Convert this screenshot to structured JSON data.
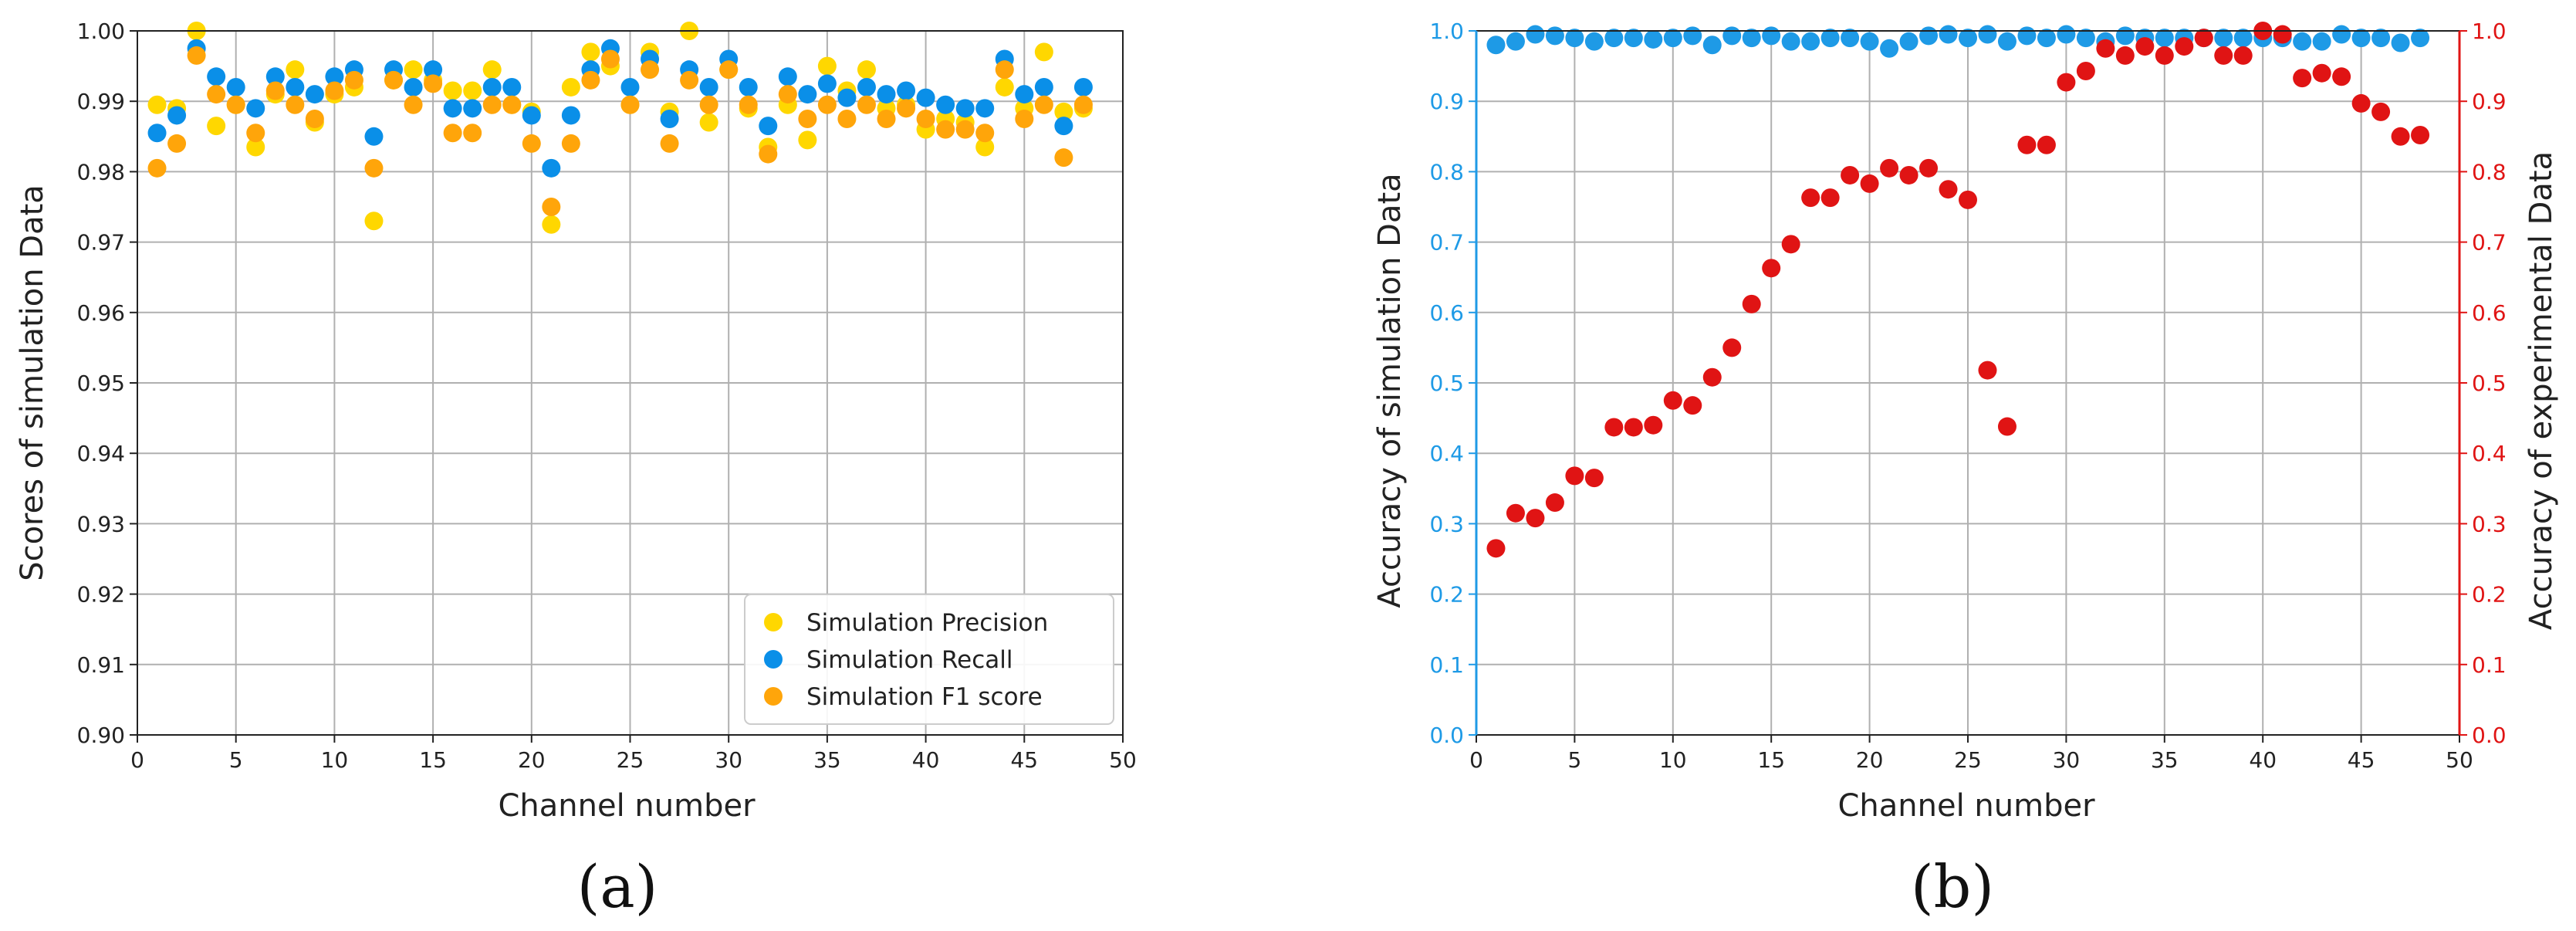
{
  "chart_data": [
    {
      "type": "scatter",
      "panel_label": "(a)",
      "title": "",
      "xlabel": "Channel number",
      "ylabel": "Scores of simulation Data",
      "xlim": [
        0,
        50
      ],
      "ylim": [
        0.9,
        1.0
      ],
      "xticks": [
        "0",
        "5",
        "10",
        "15",
        "20",
        "25",
        "30",
        "35",
        "40",
        "45",
        "50"
      ],
      "yticks": [
        "0.90",
        "0.91",
        "0.92",
        "0.93",
        "0.94",
        "0.95",
        "0.96",
        "0.97",
        "0.98",
        "0.99",
        "1.00"
      ],
      "grid": true,
      "legend_position": "lower-right",
      "x": [
        1,
        2,
        3,
        4,
        5,
        6,
        7,
        8,
        9,
        10,
        11,
        12,
        13,
        14,
        15,
        16,
        17,
        18,
        19,
        20,
        21,
        22,
        23,
        24,
        25,
        26,
        27,
        28,
        29,
        30,
        31,
        32,
        33,
        34,
        35,
        36,
        37,
        38,
        39,
        40,
        41,
        42,
        43,
        44,
        45,
        46,
        47,
        48
      ],
      "series": [
        {
          "name": "Simulation Precision",
          "color": "#FFD700",
          "values": [
            0.9895,
            0.989,
            1.0,
            0.9865,
            0.9895,
            0.9835,
            0.991,
            0.9945,
            0.987,
            0.991,
            0.992,
            0.973,
            0.993,
            0.9945,
            0.993,
            0.9915,
            0.9915,
            0.9945,
            0.9895,
            0.9885,
            0.9725,
            0.992,
            0.997,
            0.995,
            0.9895,
            0.997,
            0.9885,
            1.0,
            0.987,
            0.9945,
            0.989,
            0.9835,
            0.9895,
            0.9845,
            0.995,
            0.9915,
            0.9945,
            0.989,
            0.9895,
            0.986,
            0.9875,
            0.987,
            0.9835,
            0.992,
            0.989,
            0.997,
            0.9885,
            0.989
          ]
        },
        {
          "name": "Simulation Recall",
          "color": "#0A8FE8",
          "values": [
            0.9855,
            0.988,
            0.9975,
            0.9935,
            0.992,
            0.989,
            0.9935,
            0.992,
            0.991,
            0.9935,
            0.9945,
            0.985,
            0.9945,
            0.992,
            0.9945,
            0.989,
            0.989,
            0.992,
            0.992,
            0.988,
            0.9805,
            0.988,
            0.9945,
            0.9975,
            0.992,
            0.996,
            0.9875,
            0.9945,
            0.992,
            0.996,
            0.992,
            0.9865,
            0.9935,
            0.991,
            0.9925,
            0.9905,
            0.992,
            0.991,
            0.9915,
            0.9905,
            0.9895,
            0.989,
            0.989,
            0.996,
            0.991,
            0.992,
            0.9865,
            0.992
          ]
        },
        {
          "name": "Simulation F1 score",
          "color": "#FFA50A",
          "values": [
            0.9805,
            0.984,
            0.9965,
            0.991,
            0.9895,
            0.9855,
            0.9915,
            0.9895,
            0.9875,
            0.9915,
            0.993,
            0.9805,
            0.993,
            0.9895,
            0.9925,
            0.9855,
            0.9855,
            0.9895,
            0.9895,
            0.984,
            0.975,
            0.984,
            0.993,
            0.996,
            0.9895,
            0.9945,
            0.984,
            0.993,
            0.9895,
            0.9945,
            0.9895,
            0.9825,
            0.991,
            0.9875,
            0.9895,
            0.9875,
            0.9895,
            0.9875,
            0.989,
            0.9875,
            0.986,
            0.986,
            0.9855,
            0.9945,
            0.9875,
            0.9895,
            0.982,
            0.9895
          ]
        }
      ]
    },
    {
      "type": "scatter",
      "panel_label": "(b)",
      "title": "",
      "xlabel": "Channel number",
      "ylabel_left": "Accuracy of simulation Data",
      "ylabel_right": "Accuracy of experimental Data",
      "xlim": [
        0,
        50
      ],
      "ylim": [
        0.0,
        1.0
      ],
      "xticks": [
        "0",
        "5",
        "10",
        "15",
        "20",
        "25",
        "30",
        "35",
        "40",
        "45",
        "50"
      ],
      "yticks_left": [
        "0.0",
        "0.1",
        "0.2",
        "0.3",
        "0.4",
        "0.5",
        "0.6",
        "0.7",
        "0.8",
        "0.9",
        "1.0"
      ],
      "yticks_right": [
        "0.0",
        "0.1",
        "0.2",
        "0.3",
        "0.4",
        "0.5",
        "0.6",
        "0.7",
        "0.8",
        "0.9",
        "1.0"
      ],
      "left_axis_color": "#1E9AE6",
      "right_axis_color": "#E01414",
      "grid": true,
      "x": [
        1,
        2,
        3,
        4,
        5,
        6,
        7,
        8,
        9,
        10,
        11,
        12,
        13,
        14,
        15,
        16,
        17,
        18,
        19,
        20,
        21,
        22,
        23,
        24,
        25,
        26,
        27,
        28,
        29,
        30,
        31,
        32,
        33,
        34,
        35,
        36,
        37,
        38,
        39,
        40,
        41,
        42,
        43,
        44,
        45,
        46,
        47,
        48
      ],
      "series": [
        {
          "axis": "left",
          "color": "#1E9AE6",
          "values": [
            0.98,
            0.985,
            0.995,
            0.993,
            0.99,
            0.985,
            0.99,
            0.99,
            0.988,
            0.99,
            0.993,
            0.98,
            0.993,
            0.99,
            0.993,
            0.985,
            0.985,
            0.99,
            0.99,
            0.985,
            0.975,
            0.985,
            0.993,
            0.995,
            0.99,
            0.995,
            0.985,
            0.993,
            0.99,
            0.995,
            0.99,
            0.985,
            0.993,
            0.99,
            0.99,
            0.99,
            0.99,
            0.99,
            0.99,
            0.99,
            0.99,
            0.985,
            0.985,
            0.995,
            0.99,
            0.99,
            0.983,
            0.99
          ]
        },
        {
          "axis": "right",
          "color": "#E01414",
          "values": [
            0.265,
            0.315,
            0.308,
            0.33,
            0.368,
            0.365,
            0.437,
            0.437,
            0.44,
            0.475,
            0.468,
            0.508,
            0.55,
            0.612,
            0.663,
            0.697,
            0.763,
            0.763,
            0.795,
            0.783,
            0.805,
            0.795,
            0.805,
            0.775,
            0.76,
            0.518,
            0.438,
            0.838,
            0.838,
            0.927,
            0.943,
            0.975,
            0.965,
            0.978,
            0.965,
            0.978,
            0.99,
            0.965,
            0.965,
            1.0,
            0.995,
            0.933,
            0.94,
            0.935,
            0.897,
            0.885,
            0.85,
            0.852
          ]
        }
      ]
    }
  ]
}
